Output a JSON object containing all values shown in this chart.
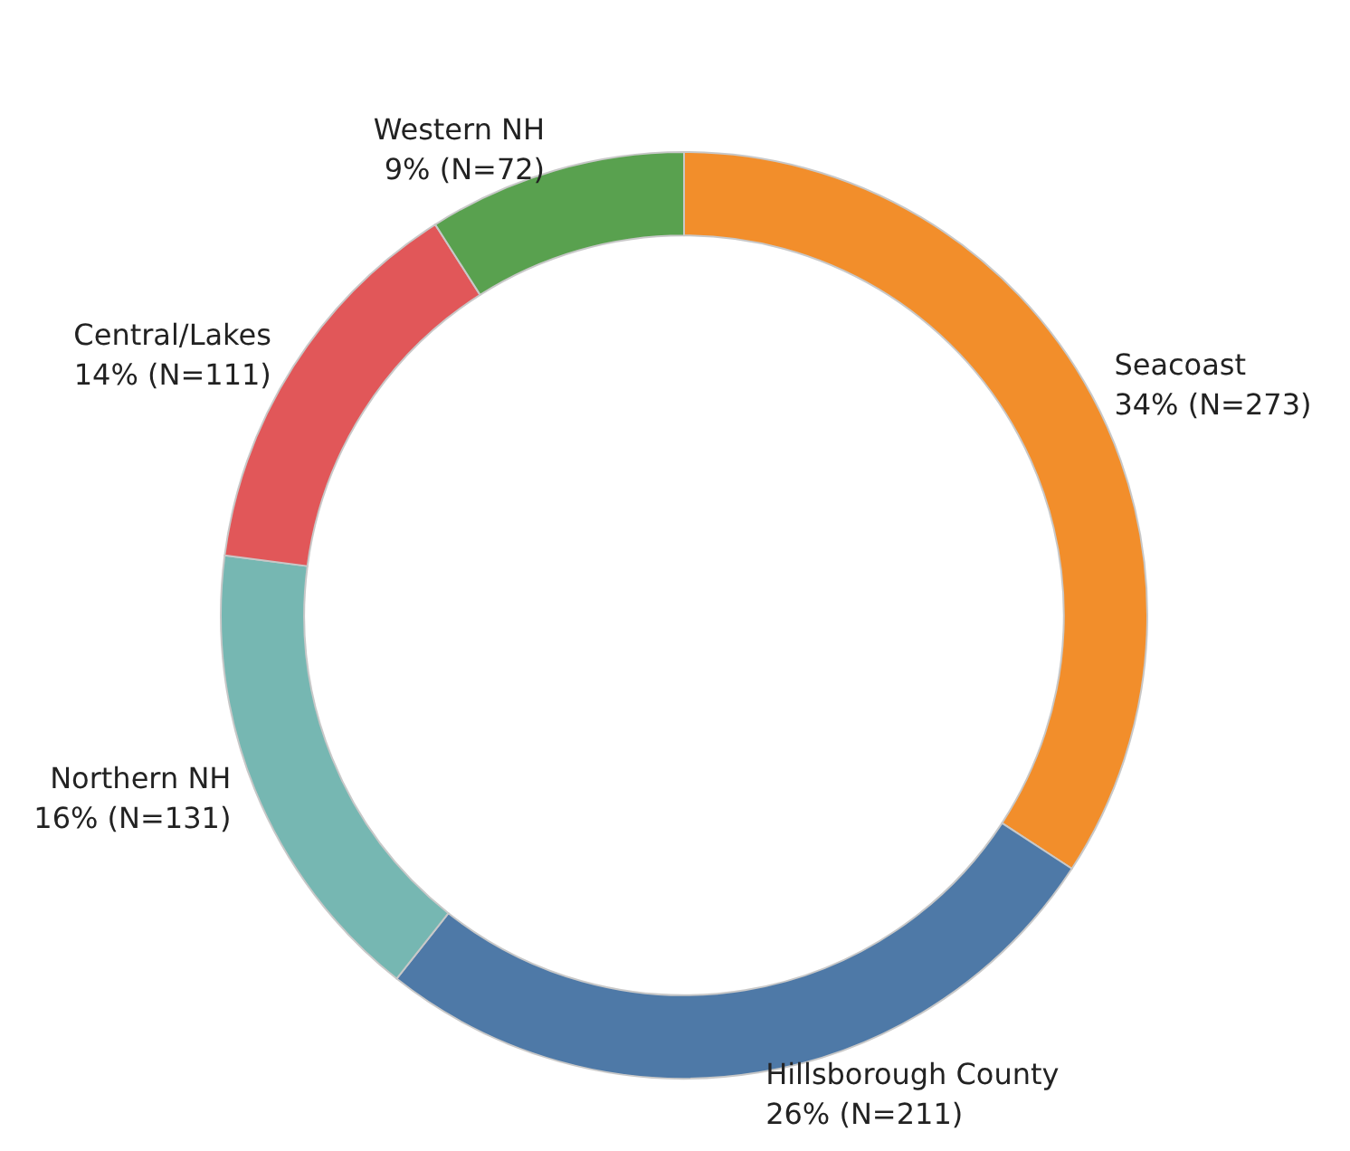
{
  "chart_data": {
    "type": "donut",
    "categories": [
      "Seacoast",
      "Hillsborough County",
      "Northern NH",
      "Central/Lakes",
      "Western NH"
    ],
    "values": [
      273,
      211,
      131,
      111,
      72
    ],
    "colors": [
      "#f28e2b",
      "#4e79a7",
      "#76b7b2",
      "#e15759",
      "#59a14f"
    ],
    "value_labels": [
      "34% (N=273)",
      "26% (N=211)",
      "16% (N=131)",
      "14% (N=111)",
      "9% (N=72)"
    ]
  }
}
